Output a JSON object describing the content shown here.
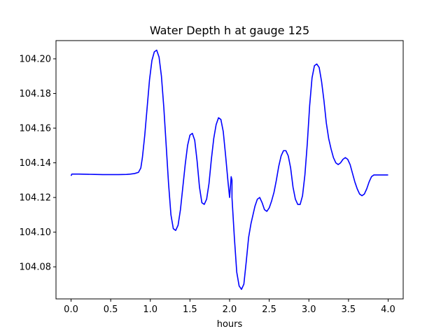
{
  "chart_data": {
    "type": "line",
    "title": "Water Depth h at gauge 125",
    "xlabel": "hours",
    "ylabel": "",
    "xlim": [
      -0.19,
      4.19
    ],
    "ylim": [
      104.0615,
      104.2105
    ],
    "xticks": [
      0.0,
      0.5,
      1.0,
      1.5,
      2.0,
      2.5,
      3.0,
      3.5,
      4.0
    ],
    "xtick_labels": [
      "0.0",
      "0.5",
      "1.0",
      "1.5",
      "2.0",
      "2.5",
      "3.0",
      "3.5",
      "4.0"
    ],
    "yticks": [
      104.08,
      104.1,
      104.12,
      104.14,
      104.16,
      104.18,
      104.2
    ],
    "ytick_labels": [
      "104.08",
      "104.10",
      "104.12",
      "104.14",
      "104.16",
      "104.18",
      "104.20"
    ],
    "grid": false,
    "color": "#0000ff",
    "series": [
      {
        "x": [
          0.0,
          0.01,
          0.05,
          0.1,
          0.2,
          0.3,
          0.4,
          0.5,
          0.6,
          0.7,
          0.75,
          0.8,
          0.85,
          0.88,
          0.9,
          0.93,
          0.96,
          0.99,
          1.02,
          1.05,
          1.08,
          1.11,
          1.14,
          1.17,
          1.2,
          1.23,
          1.26,
          1.29,
          1.32,
          1.35,
          1.38,
          1.41,
          1.44,
          1.47,
          1.5,
          1.53,
          1.56,
          1.59,
          1.62,
          1.65,
          1.68,
          1.71,
          1.74,
          1.77,
          1.8,
          1.83,
          1.86,
          1.89,
          1.92,
          1.95,
          1.98,
          2.0,
          2.02,
          2.03,
          2.03,
          2.06,
          2.09,
          2.12,
          2.15,
          2.18,
          2.21,
          2.24,
          2.27,
          2.3,
          2.31,
          2.32,
          2.35,
          2.38,
          2.41,
          2.44,
          2.47,
          2.5,
          2.53,
          2.56,
          2.59,
          2.62,
          2.65,
          2.68,
          2.71,
          2.74,
          2.77,
          2.8,
          2.83,
          2.86,
          2.89,
          2.92,
          2.95,
          2.98,
          3.01,
          3.04,
          3.07,
          3.1,
          3.13,
          3.16,
          3.19,
          3.22,
          3.25,
          3.28,
          3.31,
          3.34,
          3.37,
          3.4,
          3.43,
          3.46,
          3.49,
          3.52,
          3.55,
          3.58,
          3.61,
          3.64,
          3.67,
          3.7,
          3.73,
          3.76,
          3.79,
          3.82,
          3.85,
          3.88,
          3.91,
          3.94,
          3.97,
          4.0
        ],
        "y": [
          104.1325,
          104.1335,
          104.1335,
          104.1335,
          104.1334,
          104.1333,
          104.1332,
          104.1332,
          104.1332,
          104.1333,
          104.1335,
          104.1338,
          104.1345,
          104.137,
          104.143,
          104.156,
          104.172,
          104.188,
          104.199,
          104.204,
          104.205,
          104.201,
          104.19,
          104.172,
          104.15,
          104.128,
          104.11,
          104.102,
          104.101,
          104.104,
          104.113,
          104.126,
          104.139,
          104.15,
          104.156,
          104.157,
          104.153,
          104.141,
          104.126,
          104.117,
          104.116,
          104.119,
          104.128,
          104.142,
          104.154,
          104.162,
          104.166,
          104.165,
          104.158,
          104.144,
          104.129,
          104.12,
          104.132,
          104.13,
          104.12,
          104.097,
          104.077,
          104.069,
          104.067,
          104.07,
          104.083,
          104.097,
          104.105,
          104.111,
          104.113,
          104.115,
          104.119,
          104.12,
          104.117,
          104.113,
          104.112,
          104.114,
          104.118,
          104.123,
          104.13,
          104.138,
          104.144,
          104.147,
          104.147,
          104.144,
          104.137,
          104.126,
          104.119,
          104.116,
          104.116,
          104.121,
          104.133,
          104.151,
          104.173,
          104.189,
          104.196,
          104.197,
          104.195,
          104.187,
          104.176,
          104.163,
          104.154,
          104.148,
          104.143,
          104.14,
          104.139,
          104.14,
          104.142,
          104.143,
          104.142,
          104.139,
          104.134,
          104.129,
          104.125,
          104.122,
          104.121,
          104.122,
          104.125,
          104.129,
          104.132,
          104.133,
          104.133,
          104.133,
          104.133,
          104.133,
          104.133,
          104.133
        ]
      }
    ]
  }
}
